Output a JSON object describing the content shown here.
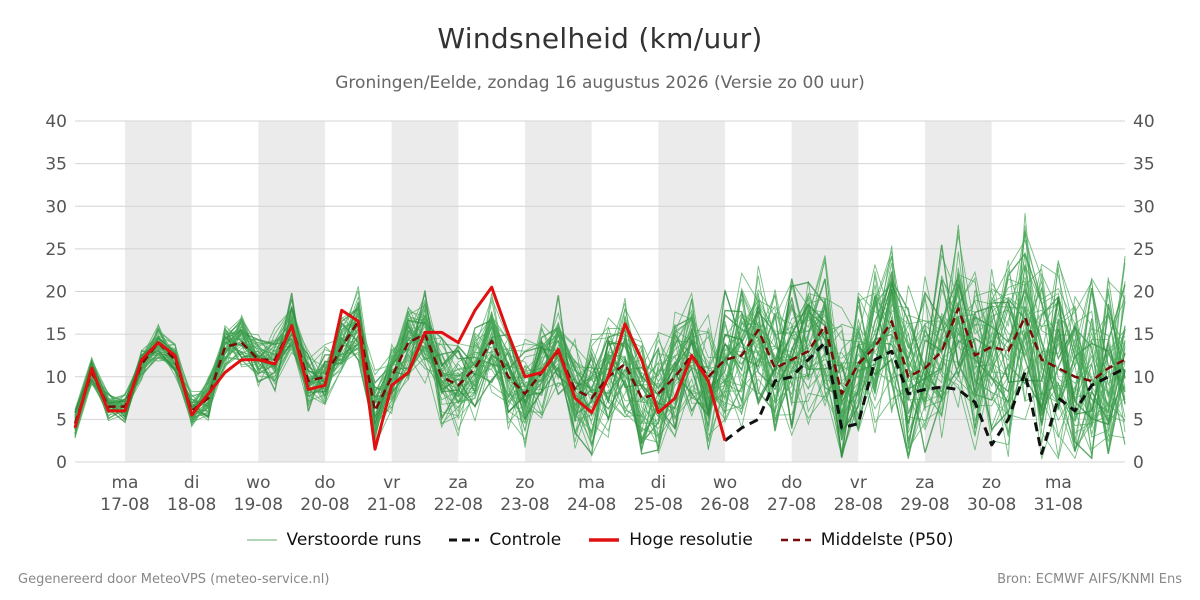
{
  "title": "Windsnelheid (km/uur)",
  "subtitle": "Groningen/Eelde, zondag 16 augustus 2026 (Versie zo 00 uur)",
  "footer": {
    "left": "Gegenereerd door MeteoVPS (meteo-service.nl)",
    "right": "Bron: ECMWF AIFS/KNMI Ens"
  },
  "legend": [
    {
      "label": "Verstoorde runs",
      "style": "thin",
      "color": "#3a9a4a"
    },
    {
      "label": "Controle",
      "style": "dashed",
      "color": "#111111"
    },
    {
      "label": "Hoge resolutie",
      "style": "solid",
      "color": "#e01010"
    },
    {
      "label": "Middelste (P50)",
      "style": "dashed",
      "color": "#7a0a0a"
    }
  ],
  "chart_data": {
    "type": "line",
    "title": "Windsnelheid (km/uur)",
    "ylim": [
      0,
      40
    ],
    "yticks": [
      0,
      5,
      10,
      15,
      20,
      25,
      30,
      35,
      40
    ],
    "xlim": [
      -0.75,
      15
    ],
    "grid": true,
    "x_ticks": [
      {
        "day": "ma",
        "date": "17-08"
      },
      {
        "day": "di",
        "date": "18-08"
      },
      {
        "day": "wo",
        "date": "19-08"
      },
      {
        "day": "do",
        "date": "20-08"
      },
      {
        "day": "vr",
        "date": "21-08"
      },
      {
        "day": "za",
        "date": "22-08"
      },
      {
        "day": "zo",
        "date": "23-08"
      },
      {
        "day": "ma",
        "date": "24-08"
      },
      {
        "day": "di",
        "date": "25-08"
      },
      {
        "day": "wo",
        "date": "26-08"
      },
      {
        "day": "do",
        "date": "27-08"
      },
      {
        "day": "vr",
        "date": "28-08"
      },
      {
        "day": "za",
        "date": "29-08"
      },
      {
        "day": "zo",
        "date": "30-08"
      },
      {
        "day": "ma",
        "date": "31-08"
      }
    ],
    "shaded_days": [
      "17-08",
      "19-08",
      "21-08",
      "23-08",
      "25-08",
      "27-08",
      "29-08"
    ],
    "series": [
      {
        "name": "Hoge resolutie",
        "color": "#e01010",
        "x": [
          -0.75,
          -0.5,
          -0.25,
          0,
          0.25,
          0.5,
          0.75,
          1,
          1.25,
          1.5,
          1.75,
          2,
          2.25,
          2.5,
          2.75,
          3,
          3.25,
          3.5,
          3.75,
          4,
          4.25,
          4.5,
          4.75,
          5,
          5.25,
          5.5,
          5.75,
          6,
          6.25,
          6.5,
          6.75,
          7,
          7.25,
          7.5,
          7.75,
          8,
          8.25,
          8.5,
          8.75,
          9
        ],
        "values": [
          4,
          11,
          6,
          6,
          12,
          14,
          12.5,
          5.5,
          8,
          10.5,
          12,
          12,
          11.5,
          16,
          8.5,
          9,
          17.8,
          16.5,
          1.5,
          9,
          10.5,
          15.2,
          15.2,
          14,
          17.8,
          20.5,
          15,
          10,
          10.5,
          13.2,
          7.5,
          5.8,
          10,
          16.2,
          12,
          5.8,
          7.5,
          12.5,
          9.5,
          2.5
        ]
      },
      {
        "name": "Controle",
        "color": "#111111",
        "x": [
          9,
          9.25,
          9.5,
          9.75,
          10,
          10.25,
          10.5,
          10.75,
          11,
          11.25,
          11.5,
          11.75,
          12,
          12.25,
          12.5,
          12.75,
          13,
          13.25,
          13.5,
          13.75,
          14,
          14.25,
          14.5,
          14.75,
          15
        ],
        "values": [
          2.5,
          4,
          5,
          9.5,
          10,
          12,
          14,
          4,
          4.5,
          12,
          13,
          8,
          8.5,
          8.8,
          8.5,
          7,
          2,
          5,
          10.5,
          1,
          7.5,
          6,
          9,
          10,
          11
        ]
      },
      {
        "name": "Middelste (P50)",
        "color": "#7a0a0a",
        "x": [
          -0.75,
          -0.5,
          -0.25,
          0,
          0.25,
          0.5,
          0.75,
          1,
          1.25,
          1.5,
          1.75,
          2,
          2.25,
          2.5,
          2.75,
          3,
          3.25,
          3.5,
          3.75,
          4,
          4.25,
          4.5,
          4.75,
          5,
          5.25,
          5.5,
          5.75,
          6,
          6.25,
          6.5,
          6.75,
          7,
          7.25,
          7.5,
          7.75,
          8,
          8.25,
          8.5,
          8.75,
          9,
          9.25,
          9.5,
          9.75,
          10,
          10.25,
          10.5,
          10.75,
          11,
          11.25,
          11.5,
          11.75,
          12,
          12.25,
          12.5,
          12.75,
          13,
          13.25,
          13.5,
          13.75,
          14,
          14.25,
          14.5,
          14.75,
          15
        ],
        "values": [
          4.5,
          10.5,
          6.5,
          6.5,
          11.5,
          14,
          12,
          6,
          7.5,
          13.5,
          14,
          12,
          12,
          16,
          9.5,
          10,
          13.5,
          16.5,
          6,
          10,
          14,
          15,
          10,
          9,
          11,
          14.2,
          10,
          8,
          10.5,
          13,
          8.5,
          7.5,
          10,
          11.5,
          7.5,
          8,
          10,
          12.5,
          10,
          12,
          12.5,
          15.5,
          11,
          12,
          13,
          16,
          8,
          11.5,
          13.5,
          16.5,
          10,
          11,
          13,
          18,
          12.5,
          13.5,
          13,
          17,
          12,
          11,
          10,
          9.5,
          11,
          12
        ]
      }
    ]
  }
}
